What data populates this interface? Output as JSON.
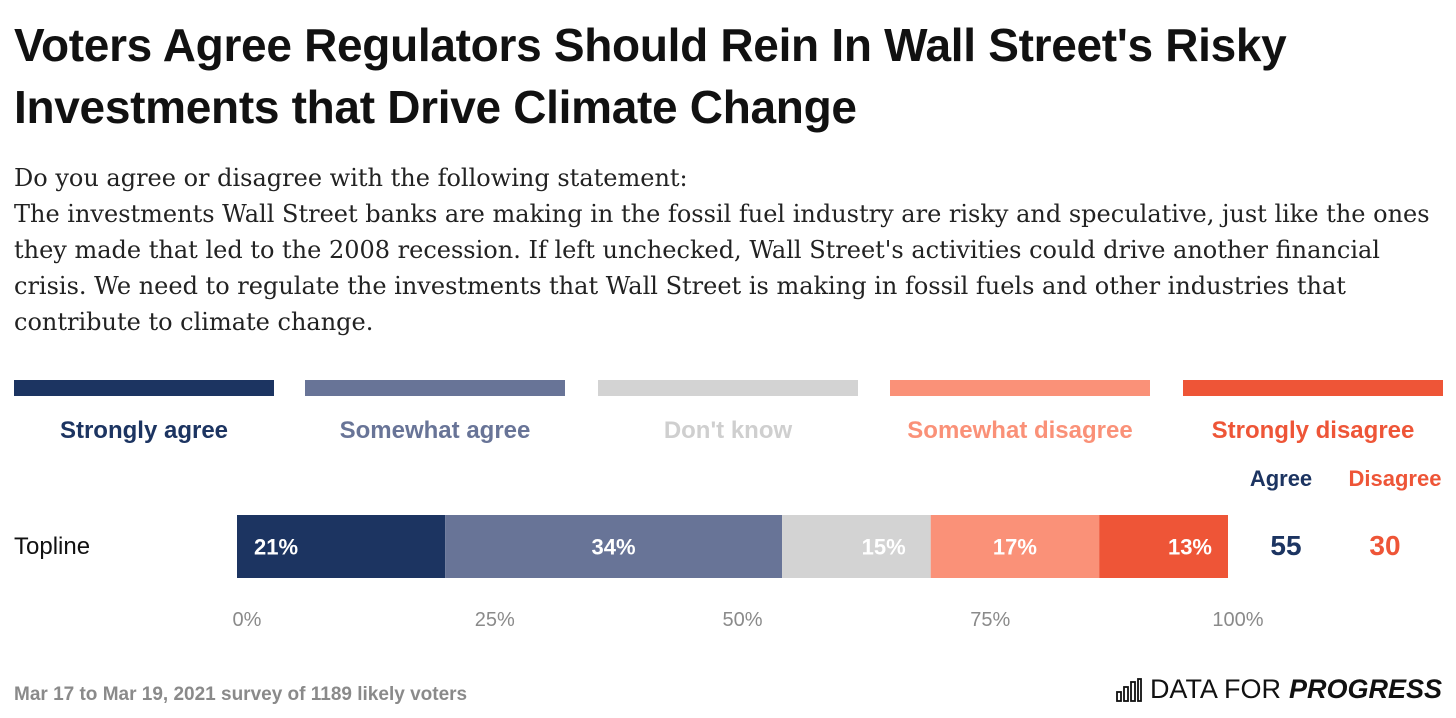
{
  "header": {
    "title": "Voters Agree Regulators Should Rein In Wall Street's Risky Investments that Drive Climate Change",
    "subtitle_line1": "Do you agree or disagree with the following statement:",
    "subtitle_line2": "The investments Wall Street banks are making in the fossil fuel industry are risky and speculative, just like the ones they made that led to the 2008 recession. If left unchecked, Wall Street's activities could drive another financial crisis. We need to regulate the investments that Wall Street is making in fossil fuels and other industries that contribute to climate change."
  },
  "summary": {
    "agree_label": "Agree",
    "disagree_label": "Disagree",
    "agree_value": "55",
    "disagree_value": "30"
  },
  "colors": {
    "strongly_agree": "#1c3461",
    "somewhat_agree": "#687497",
    "dont_know": "#d3d3d3",
    "somewhat_disagree": "#fa9178",
    "strongly_disagree": "#ee5537",
    "axis_text": "#8a8a8a"
  },
  "chart_data": {
    "type": "bar",
    "orientation": "horizontal",
    "stacked": true,
    "categories": [
      "Topline"
    ],
    "series": [
      {
        "name": "Strongly agree",
        "values": [
          21
        ],
        "label": "21%"
      },
      {
        "name": "Somewhat agree",
        "values": [
          34
        ],
        "label": "34%"
      },
      {
        "name": "Don't know",
        "values": [
          15
        ],
        "label": "15%"
      },
      {
        "name": "Somewhat disagree",
        "values": [
          17
        ],
        "label": "17%"
      },
      {
        "name": "Strongly disagree",
        "values": [
          13
        ],
        "label": "13%"
      }
    ],
    "xlim": [
      0,
      100
    ],
    "xticks": [
      "0%",
      "25%",
      "50%",
      "75%",
      "100%"
    ],
    "legend_position": "top",
    "grid": false
  },
  "footer": {
    "note": "Mar 17 to Mar 19, 2021 survey of 1189 likely voters",
    "brand_prefix": "DATA FOR",
    "brand_strong": "PROGRESS"
  }
}
